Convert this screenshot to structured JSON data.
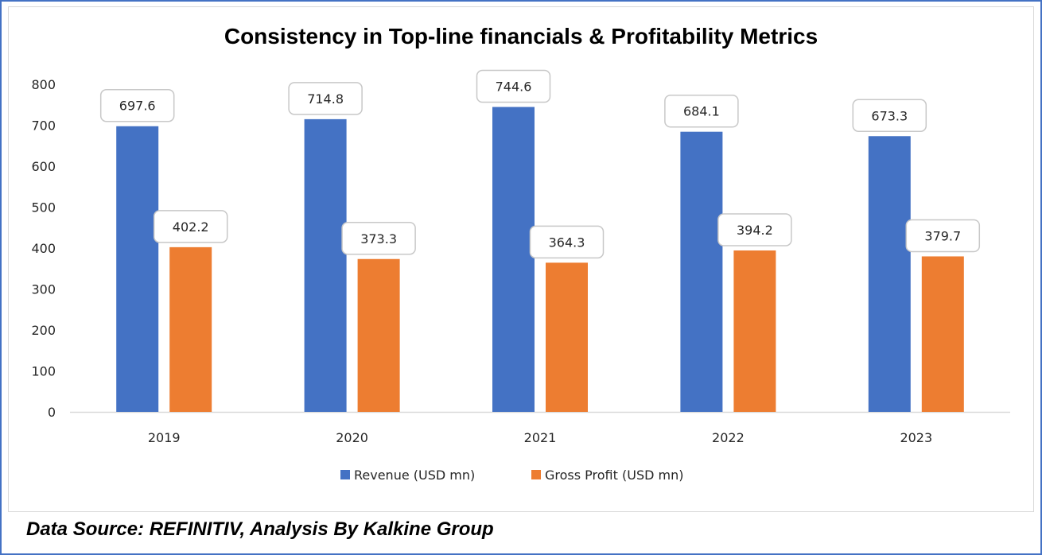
{
  "chart_data": {
    "type": "bar",
    "title": "Consistency in Top-line financials & Profitability Metrics",
    "categories": [
      "2019",
      "2020",
      "2021",
      "2022",
      "2023"
    ],
    "series": [
      {
        "name": "Revenue (USD mn)",
        "color": "#4472c4",
        "values": [
          697.6,
          714.8,
          744.6,
          684.1,
          673.3
        ],
        "labels": [
          "697.6",
          "714.8",
          "744.6",
          "684.1",
          "673.3"
        ]
      },
      {
        "name": "Gross Profit (USD mn)",
        "color": "#ed7d31",
        "values": [
          402.2,
          373.3,
          364.3,
          394.2,
          379.7
        ],
        "labels": [
          "402.2",
          "373.3",
          "364.3",
          "394.2",
          "379.7"
        ]
      }
    ],
    "xlabel": "",
    "ylabel": "",
    "ylim": [
      0,
      800
    ],
    "yticks": [
      "0",
      "100",
      "200",
      "300",
      "400",
      "500",
      "600",
      "700",
      "800"
    ],
    "grid": false,
    "legend_position": "bottom"
  },
  "footer": {
    "source": "Data Source: REFINITIV, Analysis By Kalkine Group"
  }
}
